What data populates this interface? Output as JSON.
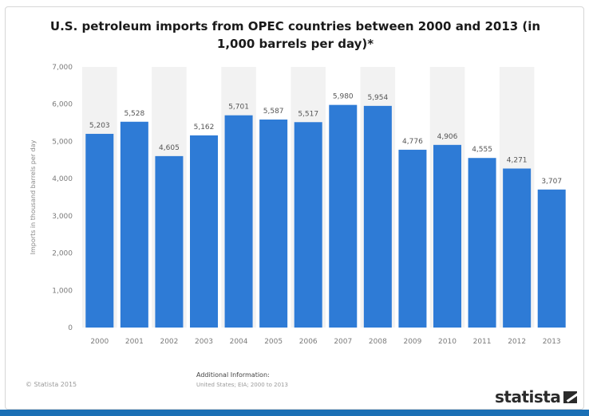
{
  "title": "U.S. petroleum imports from OPEC countries between 2000 and 2013 (in 1,000 barrels per day)*",
  "footer": {
    "copyright": "© Statista 2015",
    "additional_info_label": "Additional Information:",
    "additional_info_detail": "United States; EIA; 2000 to 2013",
    "brand": "statista"
  },
  "colors": {
    "bar": "#2e7bd6",
    "band": "#f2f2f2",
    "strip": "#1a6fb5"
  },
  "chart_data": {
    "type": "bar",
    "title": "U.S. petroleum imports from OPEC countries between 2000 and 2013 (in 1,000 barrels per day)*",
    "ylabel": "Imports in thousand barrels per day",
    "xlabel": "",
    "ylim": [
      0,
      7000
    ],
    "yticks": [
      0,
      1000,
      2000,
      3000,
      4000,
      5000,
      6000,
      7000
    ],
    "ytick_labels": [
      "0",
      "1,000",
      "2,000",
      "3,000",
      "4,000",
      "5,000",
      "6,000",
      "7,000"
    ],
    "categories": [
      "2000",
      "2001",
      "2002",
      "2003",
      "2004",
      "2005",
      "2006",
      "2007",
      "2008",
      "2009",
      "2010",
      "2011",
      "2012",
      "2013"
    ],
    "values": [
      5203,
      5528,
      4605,
      5162,
      5701,
      5587,
      5517,
      5980,
      5954,
      4776,
      4906,
      4555,
      4271,
      3707
    ],
    "value_labels": [
      "5,203",
      "5,528",
      "4,605",
      "5,162",
      "5,701",
      "5,587",
      "5,517",
      "5,980",
      "5,954",
      "4,776",
      "4,906",
      "4,555",
      "4,271",
      "3,707"
    ],
    "grid": false
  }
}
